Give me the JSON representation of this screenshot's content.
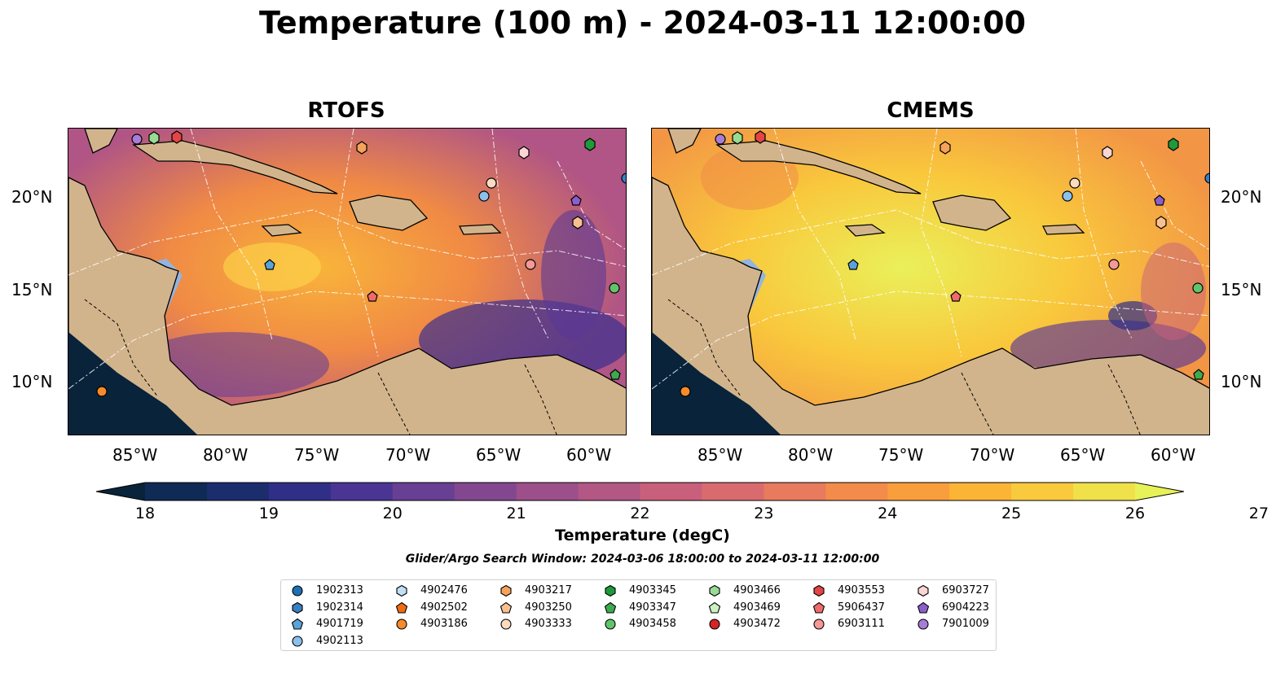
{
  "figure": {
    "title": "Temperature (100 m) - 2024-03-11 12:00:00",
    "panels": [
      {
        "id": "rtofs",
        "title": "RTOFS"
      },
      {
        "id": "cmems",
        "title": "CMEMS"
      }
    ],
    "lon_ticks": [
      "85°W",
      "80°W",
      "75°W",
      "70°W",
      "65°W",
      "60°W"
    ],
    "lat_ticks": [
      "20°N",
      "15°N",
      "10°N"
    ],
    "colorbar": {
      "label": "Temperature (degC)",
      "ticks": [
        "18",
        "19",
        "20",
        "21",
        "22",
        "23",
        "24",
        "25",
        "26",
        "27"
      ],
      "colors": [
        "#08233a",
        "#0f2a55",
        "#1c2d6e",
        "#2f2f88",
        "#4a3594",
        "#673f93",
        "#83478f",
        "#9c4f8a",
        "#b35784",
        "#c8607c",
        "#d96b6f",
        "#e87a5e",
        "#f38b4b",
        "#f99e3c",
        "#fbb436",
        "#f9ca3d",
        "#f0e04a",
        "#e6f257"
      ]
    },
    "search_window": "Glider/Argo Search Window: 2024-03-06 18:00:00 to 2024-03-11 12:00:00",
    "colors": {
      "land": "#d2b48c",
      "shelf": "#93b4e0"
    }
  },
  "legend": [
    {
      "id": "1902313",
      "marker": "circle",
      "color": "#1f6fb4"
    },
    {
      "id": "1902314",
      "marker": "hexagon",
      "color": "#3a7fc2"
    },
    {
      "id": "4901719",
      "marker": "pentagon",
      "color": "#5aa2da"
    },
    {
      "id": "4902113",
      "marker": "circle",
      "color": "#8cc0ec"
    },
    {
      "id": "4902476",
      "marker": "hexagon",
      "color": "#bfe0f7"
    },
    {
      "id": "4902502",
      "marker": "pentagon",
      "color": "#ef6b12"
    },
    {
      "id": "4903186",
      "marker": "circle",
      "color": "#f58b2a"
    },
    {
      "id": "4903217",
      "marker": "hexagon",
      "color": "#f7a259"
    },
    {
      "id": "4903250",
      "marker": "pentagon",
      "color": "#f9c08f"
    },
    {
      "id": "4903333",
      "marker": "circle",
      "color": "#fbdcc0"
    },
    {
      "id": "4903345",
      "marker": "hexagon",
      "color": "#1f9a3a"
    },
    {
      "id": "4903347",
      "marker": "pentagon",
      "color": "#3cab4f"
    },
    {
      "id": "4903458",
      "marker": "circle",
      "color": "#62c46a"
    },
    {
      "id": "4903466",
      "marker": "hexagon",
      "color": "#98dc94"
    },
    {
      "id": "4903469",
      "marker": "pentagon",
      "color": "#cdf0c4"
    },
    {
      "id": "4903472",
      "marker": "circle",
      "color": "#d42424"
    },
    {
      "id": "4903553",
      "marker": "hexagon",
      "color": "#e34545"
    },
    {
      "id": "5906437",
      "marker": "pentagon",
      "color": "#ef6a6a"
    },
    {
      "id": "6903111",
      "marker": "circle",
      "color": "#f49898"
    },
    {
      "id": "6903727",
      "marker": "hexagon",
      "color": "#fbd4d4"
    },
    {
      "id": "6904223",
      "marker": "pentagon",
      "color": "#8b5fcb"
    },
    {
      "id": "7901009",
      "marker": "circle",
      "color": "#a77dd8"
    }
  ]
}
